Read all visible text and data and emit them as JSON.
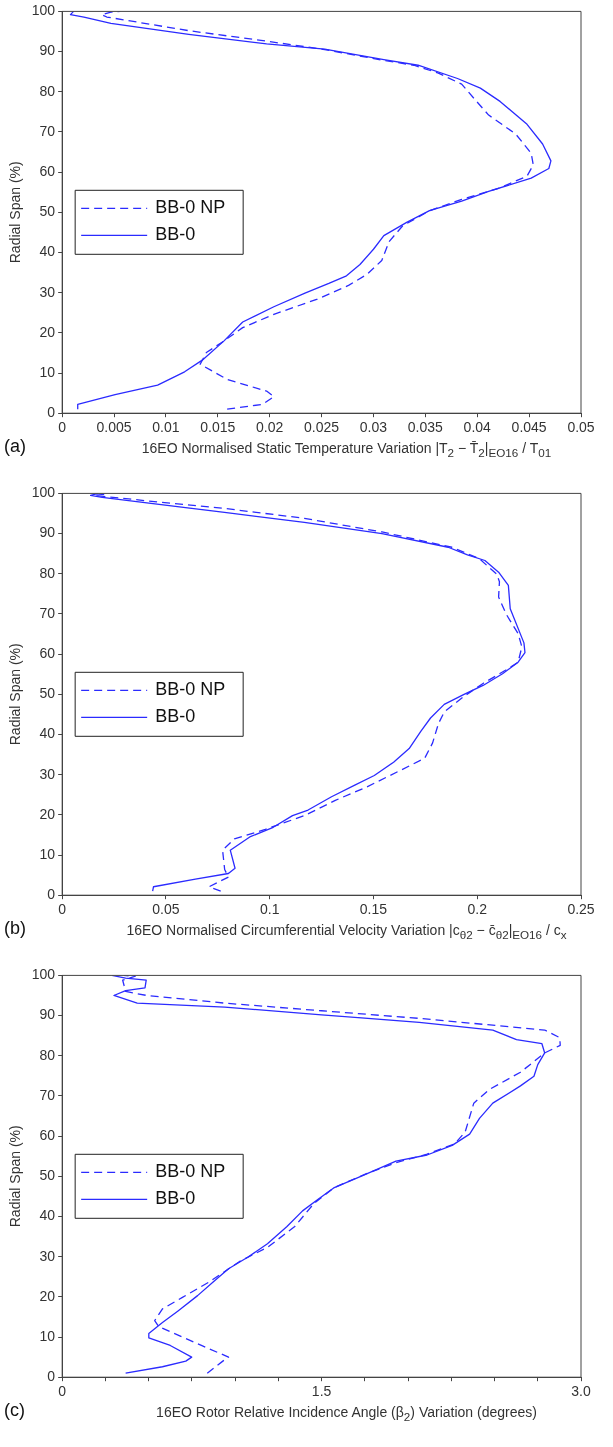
{
  "chart_data": [
    {
      "type": "line",
      "xlabel": "16EO Normalised Static Temperature Variation |T$_{2}$ − T̄$_{2}$|$_{EO16}$ / T$_{01}$",
      "ylabel": "Radial Span (%)",
      "annotations": [
        "(a)"
      ],
      "xlim": [
        0,
        0.05
      ],
      "xticks": [
        0,
        0.005,
        0.01,
        0.015,
        0.02,
        0.025,
        0.03,
        0.035,
        0.04,
        0.045,
        0.05
      ],
      "ylim": [
        0,
        100
      ],
      "yticks": [
        0,
        10,
        20,
        30,
        40,
        50,
        60,
        70,
        80,
        90,
        100
      ],
      "legend": "left",
      "series": [
        {
          "name": "BB-0 NP",
          "color": "#2b2bff",
          "line_style": "dashed",
          "x": [
            0.0159,
            0.0193,
            0.0204,
            0.0197,
            0.0159,
            0.0133,
            0.0139,
            0.0156,
            0.0174,
            0.0204,
            0.0246,
            0.0276,
            0.0294,
            0.0308,
            0.0315,
            0.0328,
            0.0354,
            0.0385,
            0.0422,
            0.0448,
            0.0454,
            0.0452,
            0.0437,
            0.0411,
            0.0398,
            0.0385,
            0.0362,
            0.0339,
            0.031,
            0.0253,
            0.0197,
            0.0122,
            0.0043,
            0.0038,
            0.0047,
            0.0056
          ],
          "values": [
            1,
            2.2,
            4.1,
            5.5,
            8.4,
            12.2,
            15.1,
            18,
            21.3,
            24.6,
            28.4,
            31.8,
            34.6,
            38,
            42.7,
            46.6,
            50.4,
            53.2,
            56.1,
            59,
            61.8,
            64.7,
            69.5,
            74.2,
            78,
            81.9,
            84.7,
            86.6,
            87.8,
            90.5,
            92.6,
            95.2,
            98.6,
            99.2,
            99.8,
            100
          ]
        },
        {
          "name": "BB-0",
          "color": "#2b2bff",
          "line_style": "solid",
          "x": [
            0.0015,
            0.0015,
            0.0051,
            0.0092,
            0.0118,
            0.0135,
            0.0156,
            0.0174,
            0.0204,
            0.0234,
            0.0257,
            0.0274,
            0.0287,
            0.03,
            0.031,
            0.0332,
            0.0354,
            0.0385,
            0.0411,
            0.0452,
            0.0469,
            0.0471,
            0.0463,
            0.0448,
            0.0422,
            0.0403,
            0.0381,
            0.0343,
            0.031,
            0.0253,
            0.0197,
            0.0122,
            0.0047,
            0.0021,
            0.0008,
            0.0011
          ],
          "values": [
            1,
            2.2,
            4.6,
            7,
            10.3,
            13.2,
            18,
            22.7,
            26.5,
            29.9,
            32.3,
            34.2,
            37,
            40.8,
            44.2,
            47.5,
            50.4,
            52.8,
            55.2,
            58.5,
            60.9,
            62.8,
            67,
            71.9,
            77.6,
            80.9,
            83.3,
            86.6,
            88,
            90.6,
            91.9,
            94.3,
            97,
            98.6,
            99.2,
            100
          ]
        }
      ]
    },
    {
      "type": "line",
      "xlabel": "16EO Normalised Circumferential Velocity Variation |c$_{θ2}$ − c̄$_{θ2}$|$_{EO16}$ / c$_{x}$",
      "ylabel": "Radial Span (%)",
      "annotations": [
        "(b)"
      ],
      "xlim": [
        0,
        0.25
      ],
      "xticks": [
        0,
        0.05,
        0.1,
        0.15,
        0.2,
        0.25
      ],
      "ylim": [
        0,
        100
      ],
      "yticks": [
        0,
        10,
        20,
        30,
        40,
        50,
        60,
        70,
        80,
        90,
        100
      ],
      "legend": "left",
      "series": [
        {
          "name": "BB-0 NP",
          "color": "#2b2bff",
          "line_style": "dashed",
          "x": [
            0.0764,
            0.0708,
            0.0801,
            0.0783,
            0.0773,
            0.083,
            0.0979,
            0.1167,
            0.1316,
            0.1466,
            0.1635,
            0.1747,
            0.1785,
            0.1813,
            0.1841,
            0.1934,
            0.2028,
            0.214,
            0.2197,
            0.2215,
            0.2197,
            0.214,
            0.2103,
            0.2107,
            0.2094,
            0.2009,
            0.1878,
            0.1541,
            0.1167,
            0.0792,
            0.0418,
            0.0155,
            0.0212
          ],
          "values": [
            1,
            2.1,
            4.5,
            6.4,
            11.2,
            14,
            16.4,
            19.8,
            23.6,
            26.9,
            31.2,
            34.1,
            37.9,
            42.7,
            45.6,
            49.4,
            52.7,
            56.1,
            58,
            61.8,
            65.1,
            69.9,
            74.2,
            78,
            79.9,
            83.8,
            86.6,
            90.4,
            93.8,
            96.2,
            98.1,
            99.5,
            99.8
          ]
        },
        {
          "name": "BB-0",
          "color": "#2b2bff",
          "line_style": "solid",
          "x": [
            0.0436,
            0.044,
            0.0642,
            0.0801,
            0.0833,
            0.081,
            0.0904,
            0.1017,
            0.111,
            0.1185,
            0.1298,
            0.141,
            0.1504,
            0.1597,
            0.1672,
            0.1728,
            0.1775,
            0.1841,
            0.1934,
            0.2028,
            0.2122,
            0.2197,
            0.223,
            0.2225,
            0.2159,
            0.215,
            0.2103,
            0.2037,
            0.1953,
            0.186,
            0.1541,
            0.1167,
            0.0792,
            0.0418,
            0.0193,
            0.0137,
            0.0174
          ],
          "values": [
            1,
            2.1,
            4,
            5.4,
            6.7,
            11.2,
            14.5,
            16.9,
            19.8,
            21.2,
            24.5,
            27.4,
            29.8,
            33.1,
            36.5,
            40.8,
            44.1,
            47.5,
            49.9,
            52.2,
            55.1,
            58,
            60.4,
            62.8,
            71.3,
            77.1,
            80.4,
            83.3,
            84.7,
            86.6,
            90,
            92.8,
            95.2,
            97.6,
            99,
            99.5,
            100
          ]
        }
      ]
    },
    {
      "type": "line",
      "xlabel": "16EO Rotor Relative Incidence Angle (β$_{2}$) Variation (degrees)",
      "ylabel": "Radial Span (%)",
      "annotations": [
        "(c)"
      ],
      "xlim": [
        0,
        3
      ],
      "xticks": [
        0,
        {
          "value": 0.25,
          "label": null
        },
        {
          "value": 0.5,
          "label": null
        },
        {
          "value": 0.75,
          "label": null
        },
        {
          "value": 1,
          "label": null
        },
        {
          "value": 1.25,
          "label": null
        },
        {
          "value": 1.5,
          "label": "1.5"
        },
        {
          "value": 1.75,
          "label": null
        },
        {
          "value": 2,
          "label": null
        },
        {
          "value": 2.25,
          "label": null
        },
        {
          "value": 2.5,
          "label": null
        },
        {
          "value": 2.75,
          "label": null
        },
        {
          "value": 3,
          "label": "3.0"
        }
      ],
      "ylim": [
        0,
        100
      ],
      "yticks": [
        0,
        10,
        20,
        30,
        40,
        50,
        60,
        70,
        80,
        90,
        100
      ],
      "legend": "left",
      "series": [
        {
          "name": "BB-0 NP",
          "color": "#2b2bff",
          "line_style": "dashed",
          "x": [
            0.839,
            0.929,
            0.962,
            0.805,
            0.558,
            0.535,
            0.58,
            0.693,
            0.85,
            1.03,
            1.187,
            1.345,
            1.457,
            1.57,
            1.75,
            1.93,
            2.11,
            2.27,
            2.33,
            2.38,
            2.47,
            2.65,
            2.79,
            2.88,
            2.877,
            2.79,
            2.065,
            1.5,
            0.94,
            0.49,
            0.367,
            0.35,
            0.423,
            0.355
          ],
          "values": [
            1,
            4,
            5,
            7.9,
            12.6,
            14.1,
            17,
            19.8,
            23.7,
            28.9,
            32.3,
            37.5,
            43.3,
            47.1,
            50.5,
            53.4,
            55.5,
            58.1,
            61,
            68.2,
            71.6,
            75.9,
            80.7,
            82.6,
            84.5,
            86.4,
            89.3,
            91.2,
            93.1,
            95,
            96,
            98.8,
            99.8,
            100
          ]
        },
        {
          "name": "BB-0",
          "color": "#2b2bff",
          "line_style": "solid",
          "x": [
            0.367,
            0.58,
            0.715,
            0.749,
            0.625,
            0.501,
            0.501,
            0.58,
            0.67,
            0.783,
            0.873,
            0.962,
            1.075,
            1.187,
            1.3,
            1.39,
            1.48,
            1.57,
            1.727,
            1.93,
            2.11,
            2.255,
            2.356,
            2.413,
            2.49,
            2.65,
            2.728,
            2.75,
            2.79,
            2.774,
            2.627,
            2.49,
            2.065,
            1.5,
            0.94,
            0.434,
            0.299,
            0.367,
            0.479,
            0.486,
            0.367,
            0.288
          ],
          "values": [
            1,
            2.6,
            4,
            5,
            7.9,
            9.8,
            10.9,
            13.6,
            16.5,
            20.3,
            23.7,
            27,
            29.9,
            33.2,
            37.5,
            41.4,
            44.3,
            47.1,
            50,
            53.8,
            55.3,
            57.7,
            60.5,
            64.4,
            68.2,
            72.5,
            74.9,
            77.8,
            80.7,
            83,
            84,
            86.4,
            88.3,
            90.2,
            92.1,
            93.1,
            95,
            96.2,
            96.9,
            98.8,
            99.3,
            100
          ]
        }
      ]
    }
  ]
}
